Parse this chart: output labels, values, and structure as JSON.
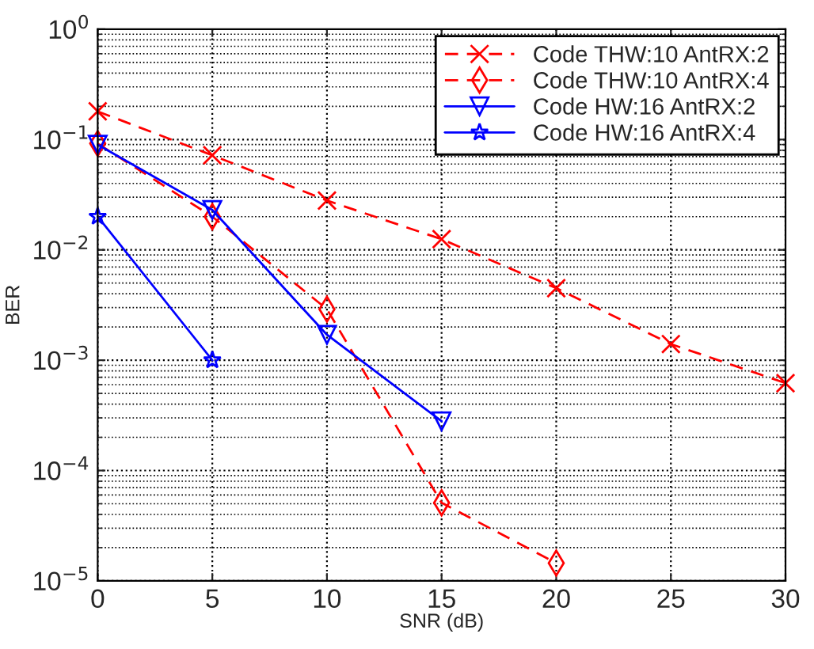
{
  "chart_data": {
    "type": "line",
    "xlabel": "SNR (dB)",
    "ylabel": "BER",
    "log": "y",
    "grid": true,
    "legend": "top right",
    "xlim": [
      0,
      30
    ],
    "xticks": [
      0,
      5,
      10,
      15,
      20,
      25,
      30
    ],
    "ylim": [
      1e-05,
      1
    ],
    "yticks": [
      {
        "value": 1e-05,
        "label": "10$^{−5}$"
      },
      {
        "value": 0.0001,
        "label": "10$^{−4}$"
      },
      {
        "value": 0.001,
        "label": "10$^{−3}$"
      },
      {
        "value": 0.01,
        "label": "10$^{−2}$"
      },
      {
        "value": 0.1,
        "label": "10$^{−1}$"
      },
      {
        "value": 1,
        "label": "10$^{0}$"
      }
    ],
    "series": [
      {
        "name": "Code THW:10 AntRX:2",
        "color": "#ff0000",
        "marker": "cross",
        "line_style": "dashed",
        "x": [
          0,
          5,
          10,
          15,
          20,
          25,
          30
        ],
        "values": [
          0.18,
          0.072,
          0.028,
          0.0125,
          0.0045,
          0.0014,
          0.00062
        ]
      },
      {
        "name": "Code THW:10 AntRX:4",
        "color": "#ff0000",
        "marker": "diamond",
        "line_style": "dashed",
        "x": [
          0,
          5,
          10,
          15,
          20
        ],
        "values": [
          0.092,
          0.02,
          0.0029,
          5.1e-05,
          1.45e-05
        ]
      },
      {
        "name": "Code HW:16 AntRX:2",
        "color": "#0000ff",
        "marker": "triangle",
        "line_style": "solid",
        "x": [
          0,
          5,
          10,
          15
        ],
        "values": [
          0.09,
          0.023,
          0.0017,
          0.00028
        ]
      },
      {
        "name": "Code HW:16 AntRX:4",
        "color": "#0000ff",
        "marker": "star",
        "line_style": "solid",
        "x": [
          0,
          5
        ],
        "values": [
          0.02,
          0.001
        ]
      }
    ]
  }
}
